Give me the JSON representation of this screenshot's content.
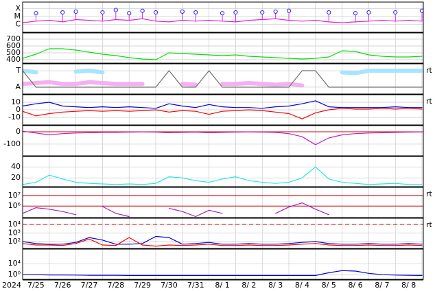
{
  "time_axis": {
    "year": "2024",
    "categories": [
      "7/25",
      "7/26",
      "7/27",
      "7/28",
      "7/29",
      "7/30",
      "7/31",
      "8/ 1",
      "8/ 2",
      "8/ 3",
      "8/ 4",
      "8/ 5",
      "8/ 6",
      "8/ 7",
      "8/ 8"
    ],
    "xticks": [
      0,
      1,
      2,
      3,
      4,
      5,
      6,
      7,
      8,
      9,
      10,
      11,
      12,
      13,
      14,
      15
    ],
    "xlim": [
      0,
      15.05
    ],
    "x": [
      0,
      0.5,
      1,
      1.5,
      2,
      2.5,
      3,
      3.5,
      4,
      4.5,
      5,
      5.5,
      6,
      6.5,
      7,
      7.5,
      8,
      8.5,
      9,
      9.5,
      10,
      10.5,
      11,
      11.5,
      12,
      12.5,
      13,
      13.5,
      14,
      14.5,
      15
    ]
  },
  "chart_data": [
    {
      "type": "line",
      "log": false,
      "ylim": [
        -7,
        -3.2
      ],
      "yticks": [
        {
          "value": -4,
          "label": "X"
        },
        {
          "value": -5,
          "label": "M"
        },
        {
          "value": -6,
          "label": "C"
        }
      ],
      "series": [
        {
          "color": "#e020e0",
          "style": "line",
          "values": [
            -5.8,
            -5.6,
            -5.5,
            -5.7,
            -5.4,
            -5.5,
            -5.6,
            -5.4,
            -5.5,
            -5.3,
            -5.6,
            -5.7,
            -5.5,
            -5.6,
            -5.5,
            -5.6,
            -5.7,
            -5.5,
            -5.4,
            -5.3,
            -5.5,
            -5.6,
            -5.5,
            -5.7,
            -5.8,
            -5.7,
            -5.6,
            -5.5,
            -5.6,
            -5.5,
            -5.6
          ]
        },
        {
          "color": "#2020ff",
          "style": "markers",
          "values": [
            null,
            -4.6,
            null,
            -4.5,
            -4.4,
            null,
            -4.5,
            -4.2,
            -4.6,
            -4.3,
            -4.5,
            null,
            -4.4,
            -4.5,
            null,
            -4.6,
            -4.5,
            null,
            -4.5,
            -4.4,
            -4.3,
            null,
            null,
            -4.5,
            null,
            -4.6,
            -4.5,
            null,
            -4.5,
            null,
            -4.3
          ]
        }
      ]
    },
    {
      "type": "line",
      "log": false,
      "ylim": [
        350,
        790
      ],
      "yticks": [
        700,
        600,
        500,
        400
      ],
      "series": [
        {
          "color": "#00e000",
          "style": "line",
          "values": [
            420,
            480,
            560,
            560,
            540,
            510,
            480,
            460,
            430,
            410,
            400,
            500,
            490,
            480,
            470,
            460,
            470,
            450,
            440,
            430,
            420,
            410,
            420,
            440,
            530,
            520,
            470,
            450,
            440,
            440,
            450
          ]
        }
      ]
    },
    {
      "type": "line",
      "log": false,
      "ylim": [
        -0.42,
        1.42
      ],
      "right_label": "rt",
      "yticks": [
        {
          "value": 1,
          "label": "T"
        },
        {
          "value": 0,
          "label": "A"
        }
      ],
      "series": [
        {
          "color": "#a8e4ff",
          "style": "band",
          "values": [
            1.0,
            0.9,
            null,
            null,
            0.95,
            1.0,
            0.9,
            null,
            null,
            null,
            null,
            null,
            null,
            null,
            null,
            null,
            0.95,
            null,
            0.9,
            null,
            null,
            null,
            null,
            null,
            0.9,
            0.85,
            1.0,
            1.0,
            1.0,
            1.0,
            1.0
          ]
        },
        {
          "color": "#f4b0f0",
          "style": "band",
          "values": [
            0.2,
            0.25,
            0.3,
            0.2,
            0.2,
            0.3,
            0.25,
            0.2,
            0.2,
            0.2,
            null,
            null,
            0.2,
            0.15,
            null,
            0.2,
            0.2,
            0.25,
            0.2,
            0.15,
            0.2,
            0.1,
            null,
            0.0,
            null,
            null,
            null,
            null,
            null,
            null,
            null
          ]
        },
        {
          "color": "#707070",
          "style": "line",
          "values": [
            1,
            0,
            0,
            0,
            0,
            0,
            0,
            0,
            0,
            0,
            0,
            1,
            0,
            0,
            1,
            0,
            0,
            0,
            0,
            0,
            0,
            1,
            1,
            0,
            0,
            0,
            0,
            0,
            0,
            0,
            0
          ]
        }
      ]
    },
    {
      "type": "line",
      "log": false,
      "ylim": [
        -20,
        20
      ],
      "yticks": [
        10,
        0,
        -10
      ],
      "right_label": "rt",
      "series": [
        {
          "color": "#0000e0",
          "style": "line",
          "values": [
            5,
            8,
            10,
            5,
            4,
            3,
            4,
            3,
            4,
            3,
            2,
            8,
            5,
            3,
            7,
            4,
            3,
            3,
            2,
            4,
            5,
            8,
            12,
            4,
            3,
            3,
            3,
            3,
            4,
            3,
            3
          ]
        },
        {
          "color": "#ff0000",
          "style": "line",
          "values": [
            -2,
            -8,
            -5,
            -3,
            -2,
            -1,
            -2,
            -1,
            -2,
            -1,
            0,
            -3,
            -1,
            -2,
            -6,
            -2,
            -1,
            0,
            -1,
            -3,
            -5,
            -12,
            -4,
            0,
            2,
            1,
            1,
            2,
            1,
            2,
            1
          ]
        }
      ]
    },
    {
      "type": "line",
      "log": false,
      "ylim": [
        -195,
        50
      ],
      "yticks": [
        0,
        -100
      ],
      "ref_lines": [
        {
          "value": 0,
          "color": "#d00000",
          "dash": false
        }
      ],
      "series": [
        {
          "color": "#c020c0",
          "style": "line",
          "values": [
            5,
            -10,
            -25,
            -15,
            -10,
            -8,
            -5,
            -5,
            -3,
            -2,
            -3,
            -8,
            -5,
            -3,
            -8,
            -5,
            -3,
            -2,
            -3,
            -5,
            -15,
            -40,
            -105,
            -50,
            -25,
            -15,
            -10,
            -8,
            -5,
            -3,
            -2
          ]
        }
      ]
    },
    {
      "type": "line",
      "log": false,
      "ylim": [
        4,
        59
      ],
      "yticks": [
        40,
        20
      ],
      "series": [
        {
          "color": "#20e8e8",
          "style": "line",
          "values": [
            8,
            12,
            25,
            18,
            12,
            10,
            9,
            8,
            9,
            8,
            10,
            22,
            20,
            15,
            12,
            18,
            22,
            15,
            12,
            10,
            12,
            20,
            40,
            18,
            12,
            10,
            8,
            9,
            10,
            8,
            8
          ]
        }
      ]
    },
    {
      "type": "line",
      "log": true,
      "ylim": [
        80000,
        60000000
      ],
      "right_label": "rt",
      "yticks": [
        {
          "value": 10000000,
          "label": "10⁷"
        },
        {
          "value": 1000000,
          "label": "10⁶"
        }
      ],
      "ref_lines": [
        {
          "value": 10000000,
          "color": "#d00000",
          "dash": false
        },
        {
          "value": 1000000,
          "color": "#d00000",
          "dash": false
        }
      ],
      "series": [
        {
          "color": "#a020c0",
          "style": "line",
          "values": [
            200000,
            700000,
            500000,
            300000,
            150000,
            null,
            900000,
            200000,
            100000,
            null,
            null,
            600000,
            300000,
            100000,
            400000,
            200000,
            null,
            null,
            null,
            200000,
            800000,
            2000000,
            500000,
            150000,
            null,
            null,
            null,
            null,
            null,
            null,
            null
          ]
        }
      ]
    },
    {
      "type": "line",
      "log": true,
      "ylim": [
        16,
        52000
      ],
      "right_label": "rt",
      "yticks": [
        {
          "value": 10000,
          "label": "10⁴"
        },
        {
          "value": 1000,
          "label": "10³"
        },
        {
          "value": 100,
          "label": "10²"
        }
      ],
      "ref_lines": [
        {
          "value": 10000,
          "color": "#d00000",
          "dash": true
        }
      ],
      "series": [
        {
          "color": "#0000e0",
          "style": "line",
          "values": [
            100,
            60,
            50,
            50,
            80,
            300,
            150,
            50,
            50,
            60,
            400,
            300,
            50,
            60,
            80,
            50,
            50,
            60,
            50,
            50,
            60,
            80,
            100,
            60,
            50,
            50,
            60,
            50,
            50,
            60,
            50
          ]
        },
        {
          "color": "#ff0000",
          "style": "line",
          "values": [
            60,
            40,
            40,
            35,
            60,
            200,
            40,
            35,
            300,
            40,
            30,
            40,
            35,
            40,
            50,
            35,
            35,
            40,
            35,
            35,
            40,
            50,
            60,
            40,
            35,
            35,
            40,
            35,
            35,
            40,
            35
          ]
        }
      ]
    },
    {
      "type": "line",
      "log": true,
      "ylim": [
        0.02,
        2000000000
      ],
      "yticks": [
        {
          "value": 10000,
          "label": "10⁴"
        },
        {
          "value": 1,
          "label": "10⁰"
        }
      ],
      "series": [
        {
          "color": "#0000e0",
          "style": "line",
          "values": [
            1,
            1,
            0.8,
            0.8,
            0.7,
            0.6,
            0.6,
            0.6,
            0.5,
            0.5,
            0.5,
            0.5,
            0.5,
            0.5,
            0.5,
            0.5,
            0.5,
            0.5,
            0.5,
            0.5,
            0.5,
            0.5,
            0.5,
            5,
            30,
            20,
            3,
            1,
            0.7,
            0.6,
            0.5
          ]
        }
      ]
    }
  ]
}
